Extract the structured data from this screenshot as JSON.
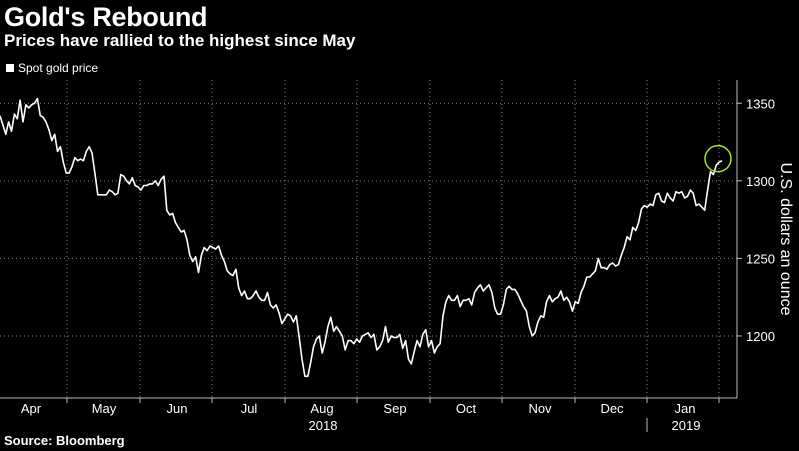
{
  "title": "Gold's Rebound",
  "subtitle": "Prices have rallied to the highest since May",
  "source": "Source: Bloomberg",
  "chart_data": {
    "type": "line",
    "title": "Gold's Rebound",
    "subtitle": "Prices have rallied to the highest since May",
    "ylabel": "U.S. dollars an ounce",
    "ylim": [
      1160,
      1365
    ],
    "y_ticks": [
      1200,
      1250,
      1300,
      1350
    ],
    "x_ticks": [
      "Apr",
      "May",
      "Jun",
      "Jul",
      "Aug",
      "Sep",
      "Oct",
      "Nov",
      "Dec",
      "Jan"
    ],
    "year_labels": [
      "2018",
      "2019"
    ],
    "grid": true,
    "legend_position": "top-left",
    "series": [
      {
        "name": "Spot gold price",
        "color": "#ffffff",
        "values": [
          1342,
          1336,
          1330,
          1338,
          1332,
          1343,
          1340,
          1352,
          1338,
          1349,
          1347,
          1349,
          1350,
          1353,
          1342,
          1341,
          1338,
          1333,
          1326,
          1330,
          1319,
          1322,
          1312,
          1305,
          1305,
          1309,
          1315,
          1313,
          1314,
          1313,
          1319,
          1322,
          1318,
          1305,
          1291,
          1291,
          1291,
          1291,
          1294,
          1293,
          1291,
          1292,
          1304,
          1303,
          1300,
          1298,
          1302,
          1297,
          1296,
          1294,
          1297,
          1297,
          1298,
          1298,
          1300,
          1297,
          1301,
          1303,
          1281,
          1278,
          1279,
          1273,
          1270,
          1267,
          1268,
          1262,
          1252,
          1248,
          1251,
          1241,
          1252,
          1257,
          1255,
          1258,
          1257,
          1256,
          1258,
          1252,
          1248,
          1242,
          1240,
          1239,
          1243,
          1231,
          1226,
          1229,
          1224,
          1224,
          1226,
          1229,
          1225,
          1223,
          1223,
          1228,
          1220,
          1218,
          1220,
          1215,
          1208,
          1211,
          1214,
          1213,
          1209,
          1213,
          1199,
          1185,
          1174,
          1174,
          1183,
          1193,
          1198,
          1200,
          1189,
          1196,
          1206,
          1212,
          1203,
          1206,
          1203,
          1200,
          1191,
          1197,
          1197,
          1195,
          1198,
          1196,
          1200,
          1201,
          1202,
          1199,
          1201,
          1191,
          1193,
          1197,
          1206,
          1196,
          1200,
          1199,
          1199,
          1201,
          1192,
          1197,
          1185,
          1182,
          1190,
          1197,
          1193,
          1201,
          1204,
          1193,
          1197,
          1189,
          1193,
          1195,
          1213,
          1222,
          1226,
          1223,
          1223,
          1226,
          1219,
          1223,
          1223,
          1224,
          1220,
          1228,
          1231,
          1233,
          1229,
          1231,
          1233,
          1228,
          1218,
          1214,
          1214,
          1220,
          1230,
          1232,
          1230,
          1230,
          1227,
          1223,
          1219,
          1216,
          1206,
          1200,
          1202,
          1209,
          1213,
          1212,
          1222,
          1226,
          1222,
          1224,
          1225,
          1229,
          1223,
          1225,
          1222,
          1216,
          1222,
          1221,
          1228,
          1232,
          1238,
          1238,
          1240,
          1242,
          1250,
          1244,
          1244,
          1243,
          1246,
          1247,
          1245,
          1246,
          1252,
          1257,
          1264,
          1262,
          1270,
          1268,
          1273,
          1282,
          1284,
          1283,
          1285,
          1284,
          1291,
          1292,
          1287,
          1286,
          1292,
          1289,
          1287,
          1293,
          1292,
          1293,
          1289,
          1290,
          1294,
          1292,
          1284,
          1285,
          1283,
          1281,
          1294,
          1306,
          1304,
          1310,
          1312,
          1313
        ]
      }
    ],
    "annotation": "circle around latest price"
  }
}
